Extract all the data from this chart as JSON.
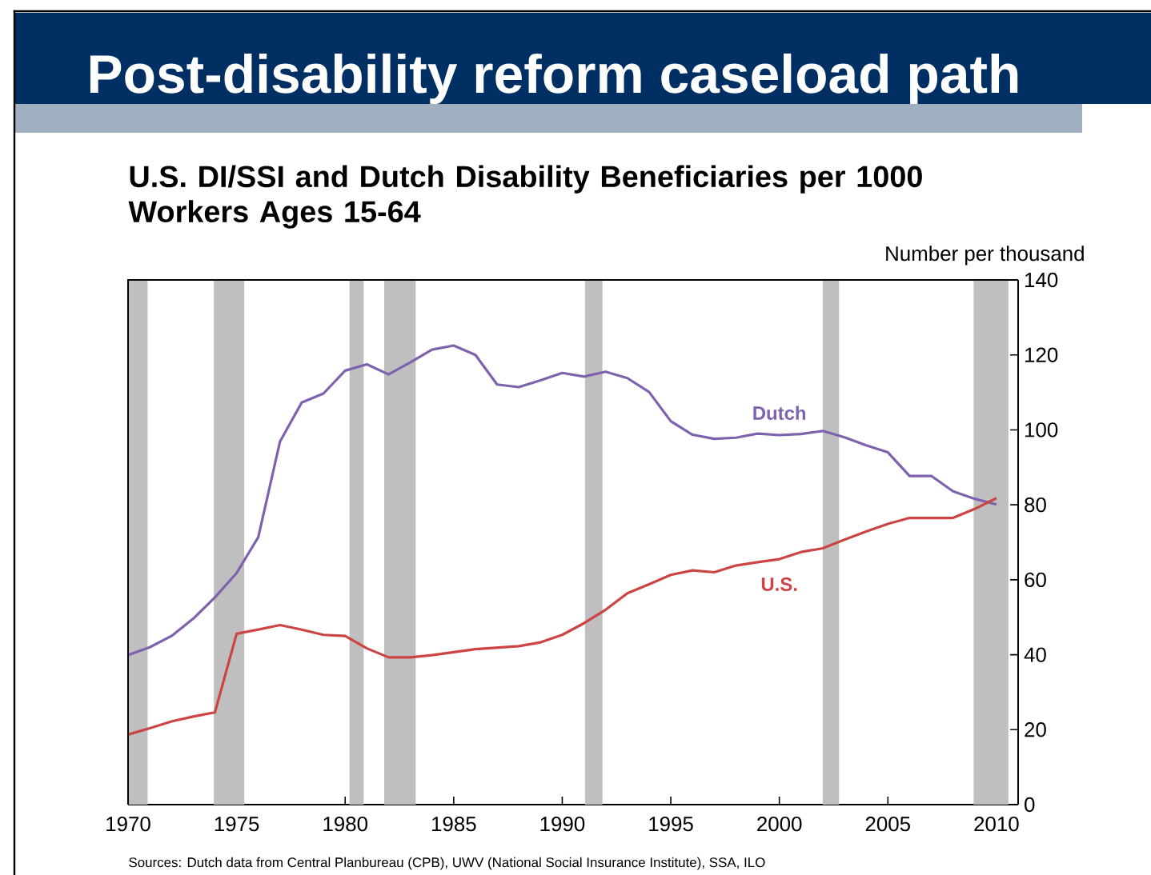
{
  "chart_data": {
    "type": "line",
    "title": "Post-disability reform caseload path",
    "subtitle": "U.S. DI/SSI and Dutch Disability Beneficiaries per 1000 Workers Ages 15-64",
    "ylabel": "Number per thousand",
    "x": [
      1970,
      1971,
      1972,
      1973,
      1974,
      1975,
      1976,
      1977,
      1978,
      1979,
      1980,
      1981,
      1982,
      1983,
      1984,
      1985,
      1986,
      1987,
      1988,
      1989,
      1990,
      1991,
      1992,
      1993,
      1994,
      1995,
      1996,
      1997,
      1998,
      1999,
      2000,
      2001,
      2002,
      2003,
      2004,
      2005,
      2006,
      2007,
      2008,
      2009,
      2010
    ],
    "series": [
      {
        "name": "Dutch",
        "color": "#7f62ad",
        "values": [
          39.9,
          42,
          45,
          49.6,
          55.3,
          61.8,
          71.4,
          96.9,
          107.3,
          109.7,
          115.8,
          117.5,
          114.8,
          118,
          121.4,
          122.5,
          120,
          112.1,
          111.4,
          113.2,
          115.2,
          114.2,
          115.5,
          113.8,
          110.1,
          102.3,
          98.7,
          97.6,
          97.9,
          99,
          98.6,
          98.9,
          99.7,
          98,
          95.9,
          94,
          87.7,
          87.7,
          83.6,
          81.6,
          80.1
        ]
      },
      {
        "name": "U.S.",
        "color": "#cc4444",
        "values": [
          18.7,
          20.4,
          22.2,
          23.5,
          24.6,
          45.6,
          46.7,
          47.9,
          46.7,
          45.3,
          45,
          41.7,
          39.3,
          39.3,
          39.9,
          40.7,
          41.5,
          41.9,
          42.3,
          43.3,
          45.3,
          48.4,
          52,
          56.4,
          58.8,
          61.3,
          62.5,
          62,
          63.8,
          64.7,
          65.5,
          67.4,
          68.4,
          70.7,
          72.9,
          74.9,
          76.5,
          76.5,
          76.5,
          78.9,
          81.8
        ]
      }
    ],
    "xlim": [
      1970,
      2011
    ],
    "ylim": [
      0,
      140
    ],
    "xticks": [
      1970,
      1975,
      1980,
      1985,
      1990,
      1995,
      2000,
      2005,
      2010
    ],
    "yticks": [
      0,
      20,
      40,
      60,
      80,
      100,
      120,
      140
    ],
    "bands": [
      {
        "axis": "x",
        "from": 1970,
        "to": 1970.9,
        "color": "#bfbfbf"
      },
      {
        "axis": "x",
        "from": 1973.95,
        "to": 1975.35,
        "color": "#bfbfbf"
      },
      {
        "axis": "x",
        "from": 1980.2,
        "to": 1980.85,
        "color": "#bfbfbf"
      },
      {
        "axis": "x",
        "from": 1981.8,
        "to": 1983.25,
        "color": "#bfbfbf"
      },
      {
        "axis": "x",
        "from": 1991.05,
        "to": 1991.85,
        "color": "#bfbfbf"
      },
      {
        "axis": "x",
        "from": 2002,
        "to": 2002.75,
        "color": "#bfbfbf"
      },
      {
        "axis": "x",
        "from": 2008.95,
        "to": 2010.55,
        "color": "#bfbfbf"
      }
    ],
    "grid": false,
    "marker": "none",
    "line_style": "solid",
    "annotations": [
      "Sources:  Dutch data from Central Planbureau (CPB), UWV (National Social Insurance Institute), SSA, ILO"
    ]
  }
}
